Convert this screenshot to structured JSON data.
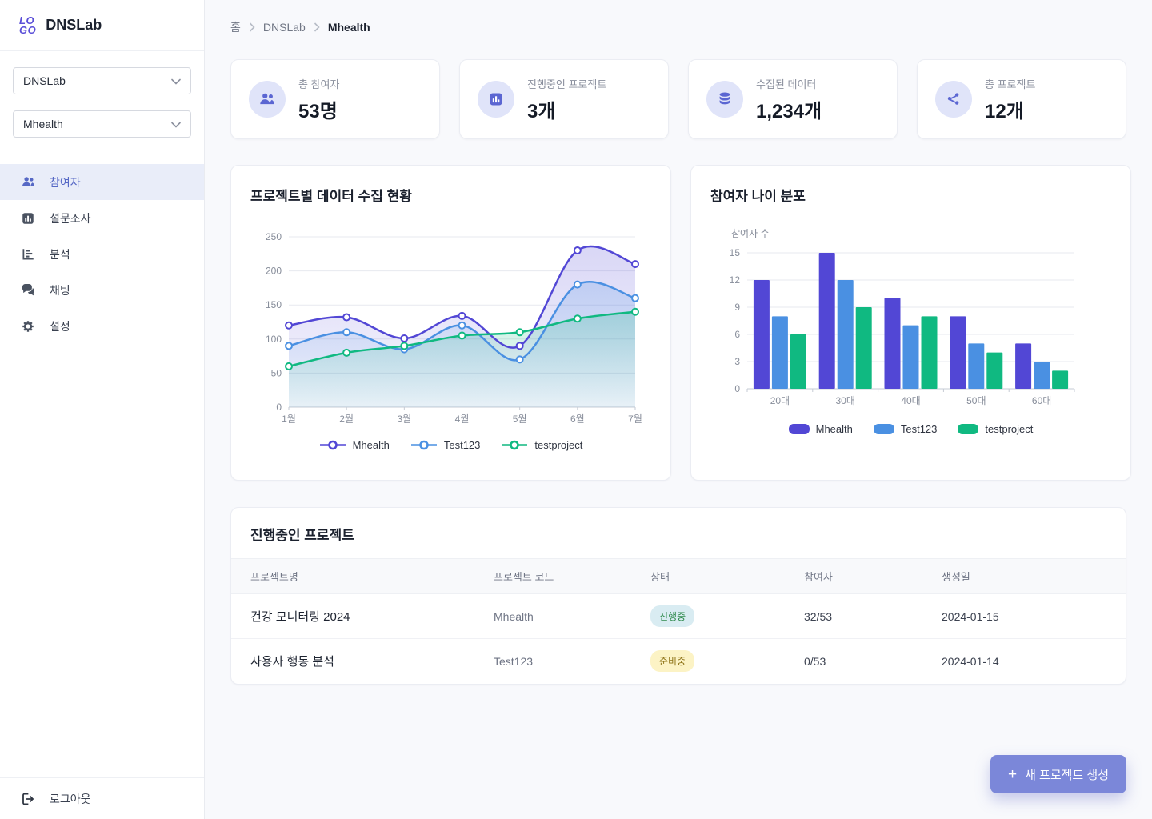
{
  "colors": {
    "primary": "#5247d5",
    "blue": "#4a90e2",
    "green": "#10b981",
    "sidebar_active_bg": "#e9edf9",
    "button_bg": "#7b87d9",
    "badges": {
      "active": {
        "bg": "#d9ecf2",
        "text": "#2f8a4c"
      },
      "ready": {
        "bg": "#fcf3c5",
        "text": "#8f7418"
      }
    }
  },
  "sidebar": {
    "logo_line1": "LO",
    "logo_line2": "GO",
    "app_name": "DNSLab",
    "org_select_value": "DNSLab",
    "project_select_value": "Mhealth",
    "items": [
      {
        "label": "참여자",
        "icon": "users-icon",
        "active": true
      },
      {
        "label": "설문조사",
        "icon": "poll-icon",
        "active": false
      },
      {
        "label": "분석",
        "icon": "analytics-icon",
        "active": false
      },
      {
        "label": "채팅",
        "icon": "chat-icon",
        "active": false
      },
      {
        "label": "설정",
        "icon": "gear-icon",
        "active": false
      }
    ],
    "logout_label": "로그아웃"
  },
  "breadcrumb": {
    "items": [
      "홈",
      "DNSLab",
      "Mhealth"
    ]
  },
  "stats": [
    {
      "label": "총 참여자",
      "value": "53명",
      "icon": "users-icon"
    },
    {
      "label": "진행중인 프로젝트",
      "value": "3개",
      "icon": "poll-icon"
    },
    {
      "label": "수집된 데이터",
      "value": "1,234개",
      "icon": "database-icon"
    },
    {
      "label": "총 프로젝트",
      "value": "12개",
      "icon": "share-nodes-icon"
    }
  ],
  "chart_data": [
    {
      "type": "line",
      "title": "프로젝트별 데이터 수집 현황",
      "xlabel": "",
      "ylabel": "",
      "x": [
        "1월",
        "2월",
        "3월",
        "4월",
        "5월",
        "6월",
        "7월"
      ],
      "series": [
        {
          "name": "Mhealth",
          "color": "#5247d5",
          "values": [
            120,
            132,
            101,
            134,
            90,
            230,
            210
          ]
        },
        {
          "name": "Test123",
          "color": "#4a90e2",
          "values": [
            90,
            110,
            85,
            120,
            70,
            180,
            160
          ]
        },
        {
          "name": "testproject",
          "color": "#10b981",
          "values": [
            60,
            80,
            90,
            105,
            110,
            130,
            140
          ]
        }
      ],
      "ylim": [
        0,
        250
      ],
      "ytick_step": 50,
      "grid": true,
      "legend_position": "bottom"
    },
    {
      "type": "bar",
      "title": "참여자 나이 분포",
      "xlabel": "",
      "ylabel": "참여자 수",
      "categories": [
        "20대",
        "30대",
        "40대",
        "50대",
        "60대"
      ],
      "series": [
        {
          "name": "Mhealth",
          "color": "#5247d5",
          "values": [
            12,
            15,
            10,
            8,
            5
          ]
        },
        {
          "name": "Test123",
          "color": "#4a90e2",
          "values": [
            8,
            12,
            7,
            5,
            3
          ]
        },
        {
          "name": "testproject",
          "color": "#10b981",
          "values": [
            6,
            9,
            8,
            4,
            2
          ]
        }
      ],
      "ylim": [
        0,
        15
      ],
      "ytick_step": 3,
      "grid": true,
      "legend_position": "bottom"
    }
  ],
  "table": {
    "title": "진행중인 프로젝트",
    "headers": [
      "프로젝트명",
      "프로젝트 코드",
      "상태",
      "참여자",
      "생성일"
    ],
    "rows": [
      {
        "name": "건강 모니터링 2024",
        "code": "Mhealth",
        "status": "진행중",
        "status_type": "active",
        "participants": "32/53",
        "created": "2024-01-15"
      },
      {
        "name": "사용자 행동 분석",
        "code": "Test123",
        "status": "준비중",
        "status_type": "ready",
        "participants": "0/53",
        "created": "2024-01-14"
      }
    ]
  },
  "new_project_button_label": "새 프로젝트 생성"
}
